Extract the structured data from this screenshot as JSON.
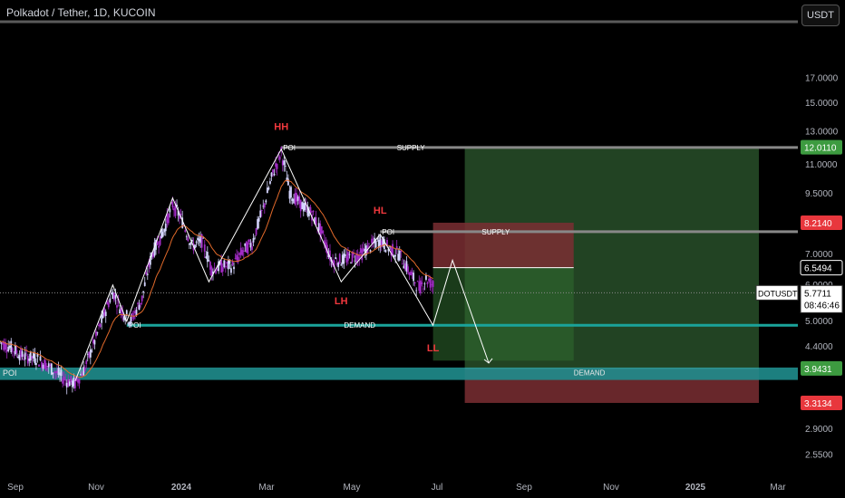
{
  "header": {
    "title": "Polkadot / Tether, 1D, KUCOIN",
    "currency_button": "USDT"
  },
  "colors": {
    "up": "#d6d6ff",
    "down": "#a12bc4",
    "ema": "#e0692a",
    "zig": "#ffffff",
    "supply": "#888888",
    "demand_line": "#1aa39a",
    "poi_band": "#1f8d8d",
    "long_green": "#2e5a2f",
    "short_red": "#7a2e33",
    "badge_green": "#3d9b40",
    "badge_red": "#e8373d"
  },
  "chart_data": {
    "type": "candlestick",
    "symbol": "DOTUSDT",
    "scale": "log",
    "ylim": [
      2.3,
      22
    ],
    "y_ticks": [
      "2.5500",
      "2.9000",
      "3.3134",
      "3.9431",
      "4.4000",
      "5.0000",
      "6.0000",
      "6.5494",
      "7.0000",
      "8.2140",
      "9.5000",
      "11.0000",
      "12.0110",
      "13.0000",
      "15.0000",
      "17.0000"
    ],
    "x_ticks": [
      "Sep",
      "Nov",
      "2024",
      "Mar",
      "May",
      "Jul",
      "Sep",
      "Nov",
      "2025",
      "Mar"
    ],
    "x_range": [
      "2023-08-25",
      "2025-03-20"
    ],
    "price_path": [
      [
        "2023-08-25",
        4.5
      ],
      [
        "2023-09-01",
        4.4
      ],
      [
        "2023-09-10",
        4.2
      ],
      [
        "2023-09-20",
        4.15
      ],
      [
        "2023-09-28",
        4.0
      ],
      [
        "2023-10-05",
        3.85
      ],
      [
        "2023-10-12",
        3.7
      ],
      [
        "2023-10-18",
        3.65
      ],
      [
        "2023-10-25",
        3.95
      ],
      [
        "2023-11-02",
        4.6
      ],
      [
        "2023-11-09",
        5.3
      ],
      [
        "2023-11-14",
        5.8
      ],
      [
        "2023-11-20",
        5.3
      ],
      [
        "2023-11-27",
        5.0
      ],
      [
        "2023-12-05",
        5.6
      ],
      [
        "2023-12-12",
        7.0
      ],
      [
        "2023-12-20",
        7.8
      ],
      [
        "2023-12-27",
        9.0
      ],
      [
        "2024-01-02",
        8.4
      ],
      [
        "2024-01-10",
        7.3
      ],
      [
        "2024-01-17",
        7.5
      ],
      [
        "2024-01-24",
        6.5
      ],
      [
        "2024-02-01",
        6.6
      ],
      [
        "2024-02-08",
        6.6
      ],
      [
        "2024-02-15",
        7.1
      ],
      [
        "2024-02-22",
        7.4
      ],
      [
        "2024-03-01",
        8.8
      ],
      [
        "2024-03-08",
        10.5
      ],
      [
        "2024-03-14",
        11.7
      ],
      [
        "2024-03-20",
        9.6
      ],
      [
        "2024-03-28",
        9.0
      ],
      [
        "2024-04-05",
        8.6
      ],
      [
        "2024-04-12",
        7.8
      ],
      [
        "2024-04-19",
        6.8
      ],
      [
        "2024-04-26",
        6.8
      ],
      [
        "2024-05-03",
        6.9
      ],
      [
        "2024-05-10",
        7.0
      ],
      [
        "2024-05-17",
        7.3
      ],
      [
        "2024-05-24",
        7.5
      ],
      [
        "2024-05-31",
        7.2
      ],
      [
        "2024-06-07",
        7.0
      ],
      [
        "2024-06-14",
        6.4
      ],
      [
        "2024-06-21",
        5.9
      ],
      [
        "2024-06-26",
        6.2
      ],
      [
        "2024-07-01",
        6.0
      ]
    ],
    "last_price": {
      "symbol": "DOTUSDT",
      "price": "5.7711",
      "countdown": "08:46:46"
    },
    "price_badges": [
      {
        "price": "12.0110",
        "kind": "green"
      },
      {
        "price": "8.2140",
        "kind": "red"
      },
      {
        "price": "6.5494",
        "kind": "white"
      },
      {
        "price": "3.9431",
        "kind": "green"
      },
      {
        "price": "3.3134",
        "kind": "red"
      }
    ],
    "structure_labels": [
      {
        "text": "HH",
        "date": "2024-03-14",
        "price": 13.1
      },
      {
        "text": "HL",
        "date": "2024-05-24",
        "price": 8.6
      },
      {
        "text": "LH",
        "date": "2024-04-26",
        "price": 5.45
      },
      {
        "text": "LL",
        "date": "2024-07-01",
        "price": 4.3
      }
    ],
    "zigzag": [
      [
        "2023-10-18",
        3.7
      ],
      [
        "2023-11-14",
        6.0
      ],
      [
        "2023-11-24",
        5.0
      ],
      [
        "2023-12-27",
        9.3
      ],
      [
        "2024-01-22",
        6.1
      ],
      [
        "2024-03-14",
        11.9
      ],
      [
        "2024-04-26",
        6.1
      ],
      [
        "2024-05-24",
        7.75
      ],
      [
        "2024-07-01",
        4.9
      ],
      [
        "2024-07-15",
        6.8
      ],
      [
        "2024-08-10",
        4.05
      ]
    ],
    "levels": [
      {
        "name": "supply",
        "label": "SUPPLY",
        "poi": "POI",
        "price": 12.0,
        "from": "2024-03-14",
        "to": "2025-03-20",
        "label_date": "2024-06-05"
      },
      {
        "name": "supply-2",
        "label": "SUPPLY",
        "poi": "POI",
        "price": 7.85,
        "from": "2024-05-24",
        "to": "2025-03-20",
        "label_date": "2024-08-05"
      },
      {
        "name": "demand",
        "label": "DEMAND",
        "poi": "POI",
        "price": 4.9,
        "from": "2023-11-24",
        "to": "2025-03-20",
        "label_date": "2024-04-28"
      }
    ],
    "poi_band": {
      "label": "POI",
      "top": 3.96,
      "bottom": 3.72
    },
    "demand_label": {
      "text": "DEMAND",
      "date": "2024-10-10",
      "price": 3.86
    },
    "long_position": {
      "from": "2024-07-01",
      "to": "2025-02-20",
      "entry": 3.9431,
      "stop": 3.3134,
      "target": 12.011
    },
    "short_position": {
      "from": "2024-07-01",
      "to": "2024-10-10",
      "entry": 6.5494,
      "stop": 8.214,
      "target": 4.1
    }
  }
}
